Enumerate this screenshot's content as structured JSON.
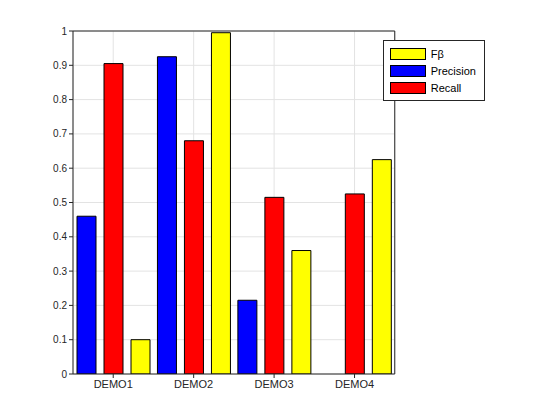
{
  "chart_data": {
    "type": "bar",
    "categories": [
      "DEMO1",
      "DEMO2",
      "DEMO3",
      "DEMO4"
    ],
    "series": [
      {
        "name": "Precision",
        "color": "#0000ff",
        "values": [
          0.46,
          0.925,
          0.215,
          0
        ]
      },
      {
        "name": "Recall",
        "color": "#ff0000",
        "values": [
          0.905,
          0.68,
          0.515,
          0.525
        ]
      },
      {
        "name": "Fβ",
        "color": "#ffff00",
        "values": [
          0.1,
          0.995,
          0.36,
          0.625
        ]
      }
    ],
    "ylim": [
      0,
      1
    ],
    "yticks": [
      0,
      0.1,
      0.2,
      0.3,
      0.4,
      0.5,
      0.6,
      0.7,
      0.8,
      0.9,
      1
    ],
    "grid": true,
    "legend": "northeast"
  }
}
